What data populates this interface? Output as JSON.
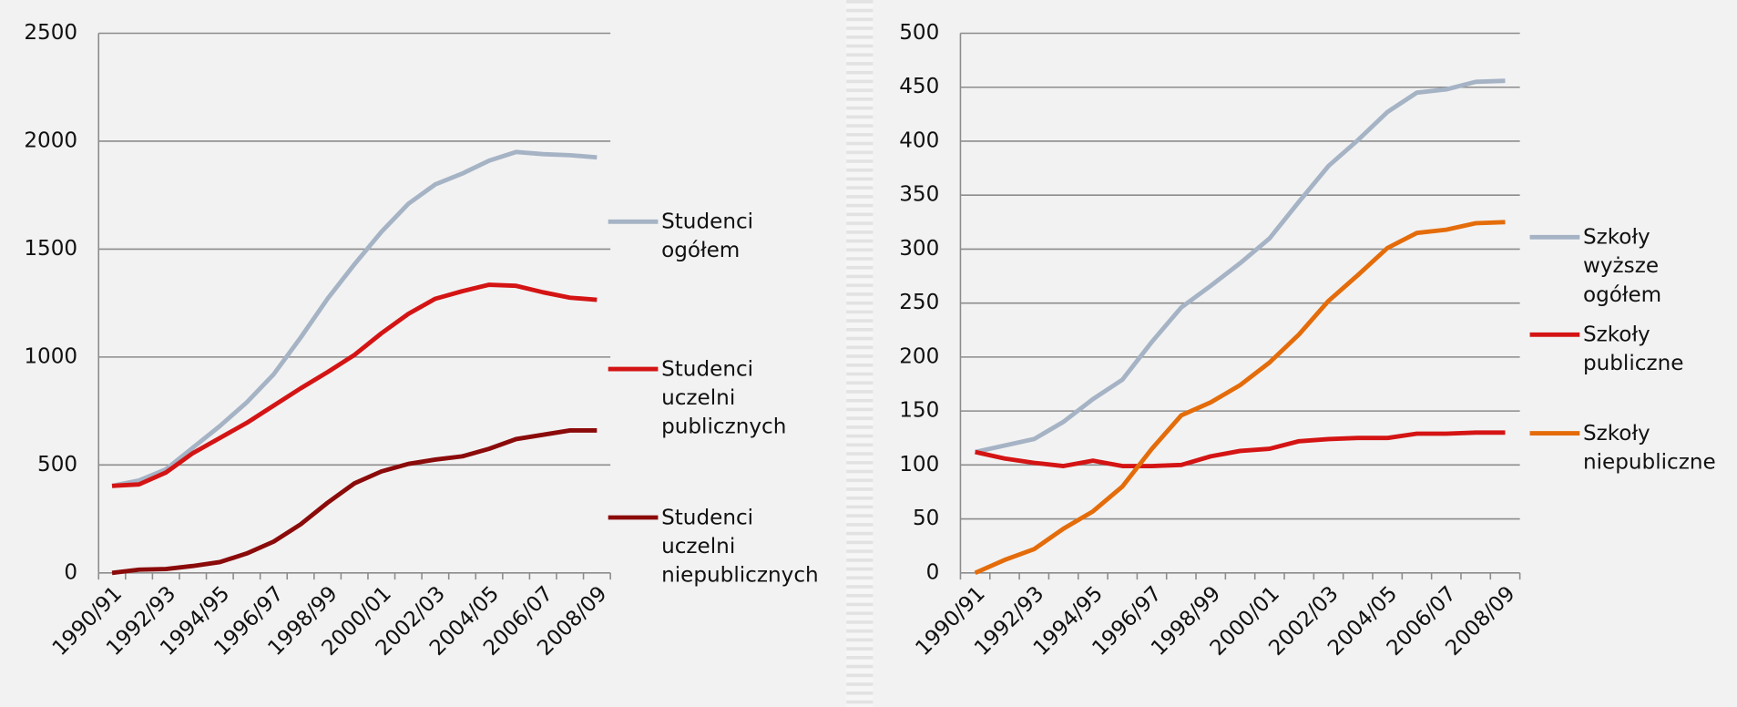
{
  "chart_data": [
    {
      "type": "line",
      "categories": [
        "1990/91",
        null,
        "1992/93",
        null,
        "1994/95",
        null,
        "1996/97",
        null,
        "1998/99",
        null,
        "2000/01",
        null,
        "2002/03",
        null,
        "2004/05",
        null,
        "2006/07",
        null,
        "2008/09"
      ],
      "ylim": [
        0,
        2500
      ],
      "yticks": [
        0,
        500,
        1000,
        1500,
        2000,
        2500
      ],
      "grid": true,
      "legend": "right",
      "series": [
        {
          "name": "Studenci ogółem",
          "color": "#a5b3c5",
          "values": [
            403,
            428,
            480,
            580,
            680,
            790,
            920,
            1090,
            1270,
            1430,
            1580,
            1710,
            1800,
            1850,
            1910,
            1950,
            1940,
            1935,
            1925
          ]
        },
        {
          "name": "Studenci uczelni publicznych",
          "color": "#d41414",
          "values": [
            403,
            410,
            465,
            555,
            625,
            695,
            775,
            855,
            930,
            1010,
            1110,
            1200,
            1270,
            1305,
            1335,
            1330,
            1300,
            1275,
            1265
          ]
        },
        {
          "name": "Studenci uczelni niepublicznych",
          "color": "#8b0a0a",
          "values": [
            0,
            15,
            18,
            32,
            50,
            90,
            145,
            225,
            325,
            415,
            470,
            505,
            525,
            540,
            575,
            620,
            640,
            660,
            660
          ]
        }
      ]
    },
    {
      "type": "line",
      "categories": [
        "1990/91",
        null,
        "1992/93",
        null,
        "1994/95",
        null,
        "1996/97",
        null,
        "1998/99",
        null,
        "2000/01",
        null,
        "2002/03",
        null,
        "2004/05",
        null,
        "2006/07",
        null,
        "2008/09"
      ],
      "ylim": [
        0,
        500
      ],
      "yticks": [
        0,
        50,
        100,
        150,
        200,
        250,
        300,
        350,
        400,
        450,
        500
      ],
      "grid": true,
      "legend": "right",
      "series": [
        {
          "name": "Szkoły wyższe ogółem",
          "color": "#a5b3c5",
          "values": [
            112,
            118,
            124,
            140,
            161,
            179,
            214,
            246,
            266,
            287,
            310,
            344,
            377,
            401,
            427,
            445,
            448,
            455,
            456
          ]
        },
        {
          "name": "Szkoły publiczne",
          "color": "#d41414",
          "values": [
            112,
            106,
            102,
            99,
            104,
            99,
            99,
            100,
            108,
            113,
            115,
            122,
            124,
            125,
            125,
            129,
            129,
            130,
            130
          ]
        },
        {
          "name": "Szkoły niepubliczne",
          "color": "#e46c0a",
          "values": [
            0,
            12,
            22,
            41,
            57,
            80,
            115,
            146,
            158,
            174,
            195,
            221,
            252,
            276,
            301,
            315,
            318,
            324,
            325
          ]
        }
      ]
    }
  ]
}
